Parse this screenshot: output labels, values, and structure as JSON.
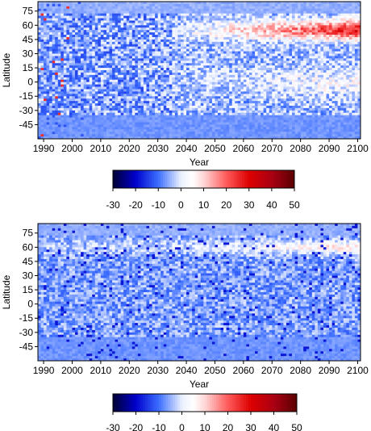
{
  "chart_data": [
    {
      "type": "heatmap",
      "panel": "top",
      "xlabel": "Year",
      "ylabel": "Latitude",
      "xlim": [
        1988,
        2101
      ],
      "ylim": [
        -60,
        85
      ],
      "x_ticks": [
        1990,
        2000,
        2010,
        2020,
        2030,
        2040,
        2050,
        2060,
        2070,
        2080,
        2090,
        2100
      ],
      "x_tick_labels": [
        "1990",
        "2000",
        "2010",
        "2020",
        "2030",
        "2040",
        "2050",
        "2060",
        "2070",
        "2080",
        "2090",
        "2100"
      ],
      "y_ticks": [
        75,
        60,
        45,
        30,
        15,
        0,
        -15,
        -30,
        -45
      ],
      "y_tick_labels": [
        "75",
        "60",
        "45",
        "30",
        "15",
        "0",
        "-15",
        "-30",
        "-45"
      ],
      "colorbar": {
        "min": -30,
        "max": 50,
        "ticks": [
          -30,
          -20,
          -10,
          0,
          10,
          20,
          30,
          40,
          50
        ],
        "tick_labels": [
          "-30",
          "-20",
          "-10",
          "0",
          "10",
          "20",
          "30",
          "40",
          "50"
        ],
        "colors": [
          "#000033",
          "#0000cc",
          "#3366ff",
          "#ffffff",
          "#ffcccc",
          "#ff4444",
          "#cc0000",
          "#660000"
        ]
      },
      "description_of_pattern": "Strong positive anomalies (up to ~40) at latitudes 40-65 increasing after 2035; weak positive anomalies near the equator after 2040; blue negative anomalies scattered before 2035 and over southern latitudes."
    },
    {
      "type": "heatmap",
      "panel": "bottom",
      "xlabel": "Year",
      "ylabel": "Latitude",
      "xlim": [
        1988,
        2101
      ],
      "ylim": [
        -60,
        85
      ],
      "x_ticks": [
        1990,
        2000,
        2010,
        2020,
        2030,
        2040,
        2050,
        2060,
        2070,
        2080,
        2090,
        2100
      ],
      "x_tick_labels": [
        "1990",
        "2000",
        "2010",
        "2020",
        "2030",
        "2040",
        "2050",
        "2060",
        "2070",
        "2080",
        "2090",
        "2100"
      ],
      "y_ticks": [
        75,
        60,
        45,
        30,
        15,
        0,
        -15,
        -30,
        -45
      ],
      "y_tick_labels": [
        "75",
        "60",
        "45",
        "30",
        "15",
        "0",
        "-15",
        "-30",
        "-45"
      ],
      "colorbar": {
        "min": -30,
        "max": 50,
        "ticks": [
          -30,
          -20,
          -10,
          0,
          10,
          20,
          30,
          40,
          50
        ],
        "tick_labels": [
          "-30",
          "-20",
          "-10",
          "0",
          "10",
          "20",
          "30",
          "40",
          "50"
        ],
        "colors": [
          "#000033",
          "#0000cc",
          "#3366ff",
          "#ffffff",
          "#ffcccc",
          "#ff4444",
          "#cc0000",
          "#660000"
        ]
      },
      "description_of_pattern": "Mostly weak negative (light blue) anomalies with a band of weak positive anomalies near latitude 60 after 2030 and scattered darker blue streaks around latitude 15 and -30."
    }
  ]
}
